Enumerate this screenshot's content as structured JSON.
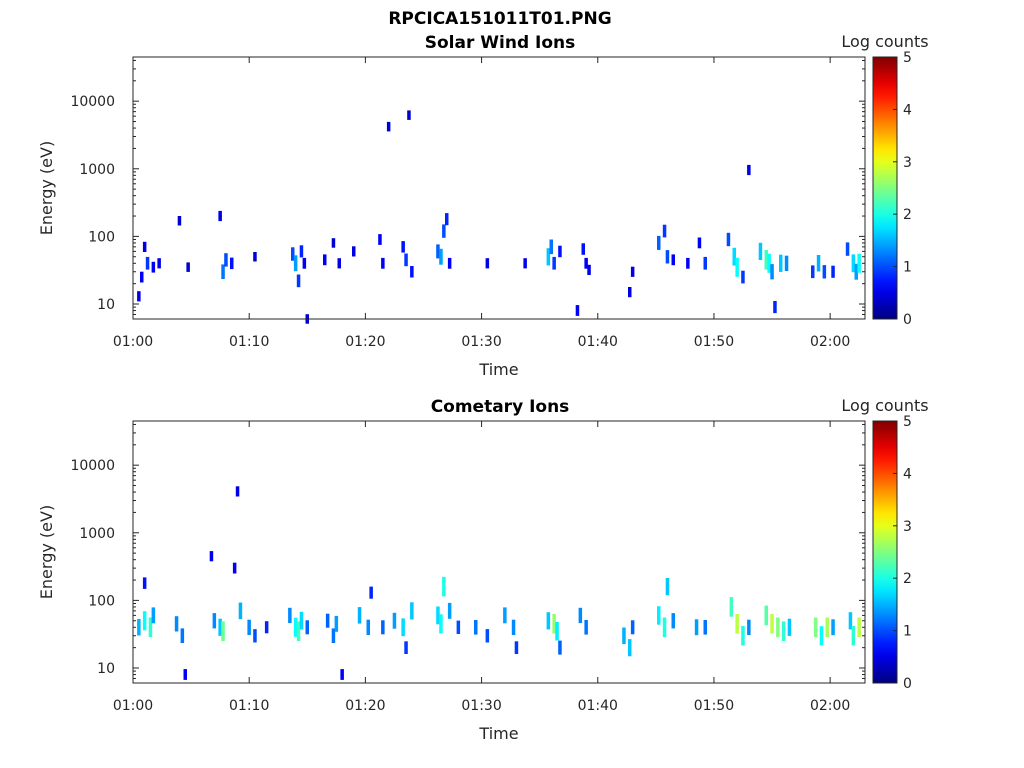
{
  "figure": {
    "title": "RPCICA151011T01.PNG"
  },
  "chart_data": [
    {
      "type": "heatmap",
      "title": "Solar Wind Ions",
      "xlabel": "Time",
      "ylabel": "Energy (eV)",
      "x_ticks": [
        "01:00",
        "01:10",
        "01:20",
        "01:30",
        "01:40",
        "01:50",
        "02:00"
      ],
      "y_ticks": [
        "10",
        "100",
        "1000",
        "10000"
      ],
      "y_scale": "log",
      "xlim": [
        "01:00",
        "02:03"
      ],
      "ylim": [
        6,
        45000
      ],
      "colorbar": {
        "label": "Log counts",
        "ticks": [
          "0",
          "1",
          "2",
          "3",
          "4",
          "5"
        ],
        "range": [
          0,
          5
        ],
        "colormap": "jet"
      },
      "cells": [
        [
          "01:00:30",
          13,
          0.5
        ],
        [
          "01:00:45",
          25,
          0.6
        ],
        [
          "01:01:00",
          70,
          0.5
        ],
        [
          "01:01:15",
          40,
          0.9
        ],
        [
          "01:01:45",
          35,
          0.6
        ],
        [
          "01:02:15",
          40,
          0.5
        ],
        [
          "01:04:00",
          170,
          0.4
        ],
        [
          "01:04:45",
          35,
          0.4
        ],
        [
          "01:07:30",
          200,
          0.5
        ],
        [
          "01:07:45",
          30,
          1.2
        ],
        [
          "01:08:00",
          45,
          1.0
        ],
        [
          "01:08:30",
          40,
          0.7
        ],
        [
          "01:10:30",
          50,
          0.4
        ],
        [
          "01:13:45",
          55,
          1.0
        ],
        [
          "01:14:00",
          40,
          1.4
        ],
        [
          "01:14:15",
          22,
          0.9
        ],
        [
          "01:14:30",
          60,
          0.8
        ],
        [
          "01:14:45",
          40,
          0.6
        ],
        [
          "01:15:00",
          6,
          0.4
        ],
        [
          "01:16:30",
          45,
          0.6
        ],
        [
          "01:17:15",
          80,
          0.4
        ],
        [
          "01:17:45",
          40,
          0.5
        ],
        [
          "01:19:00",
          60,
          0.5
        ],
        [
          "01:21:15",
          90,
          0.6
        ],
        [
          "01:21:30",
          40,
          0.6
        ],
        [
          "01:22:00",
          4200,
          0.4
        ],
        [
          "01:23:15",
          70,
          0.7
        ],
        [
          "01:23:30",
          45,
          0.9
        ],
        [
          "01:23:45",
          6200,
          0.4
        ],
        [
          "01:24:00",
          30,
          0.7
        ],
        [
          "01:26:15",
          60,
          1.1
        ],
        [
          "01:26:30",
          50,
          1.4
        ],
        [
          "01:26:45",
          120,
          1.0
        ],
        [
          "01:27:00",
          180,
          0.8
        ],
        [
          "01:27:15",
          40,
          0.6
        ],
        [
          "01:30:30",
          40,
          0.5
        ],
        [
          "01:33:45",
          40,
          0.5
        ],
        [
          "01:35:45",
          50,
          1.6
        ],
        [
          "01:36:00",
          70,
          1.2
        ],
        [
          "01:36:15",
          40,
          0.9
        ],
        [
          "01:36:45",
          60,
          0.7
        ],
        [
          "01:38:15",
          8,
          0.6
        ],
        [
          "01:38:45",
          65,
          0.7
        ],
        [
          "01:39:00",
          40,
          0.6
        ],
        [
          "01:39:15",
          32,
          0.5
        ],
        [
          "01:42:45",
          15,
          0.5
        ],
        [
          "01:43:00",
          30,
          0.5
        ],
        [
          "01:45:15",
          80,
          1.1
        ],
        [
          "01:45:45",
          120,
          0.9
        ],
        [
          "01:46:00",
          50,
          1.0
        ],
        [
          "01:46:30",
          45,
          0.6
        ],
        [
          "01:47:45",
          40,
          0.6
        ],
        [
          "01:48:45",
          80,
          0.6
        ],
        [
          "01:49:15",
          40,
          0.9
        ],
        [
          "01:51:15",
          90,
          1.0
        ],
        [
          "01:51:45",
          50,
          1.7
        ],
        [
          "01:52:00",
          35,
          1.9
        ],
        [
          "01:52:30",
          25,
          0.9
        ],
        [
          "01:53:00",
          960,
          0.5
        ],
        [
          "01:54:00",
          60,
          1.6
        ],
        [
          "01:54:30",
          45,
          2.2
        ],
        [
          "01:54:45",
          40,
          1.9
        ],
        [
          "01:55:00",
          30,
          1.3
        ],
        [
          "01:55:15",
          9,
          0.8
        ],
        [
          "01:55:45",
          40,
          1.6
        ],
        [
          "01:56:15",
          40,
          1.3
        ],
        [
          "01:58:30",
          30,
          0.9
        ],
        [
          "01:59:00",
          40,
          1.5
        ],
        [
          "01:59:30",
          30,
          1.0
        ],
        [
          "02:00:15",
          30,
          0.8
        ],
        [
          "02:01:30",
          65,
          1.0
        ],
        [
          "02:02:00",
          40,
          1.7
        ],
        [
          "02:02:15",
          30,
          1.4
        ],
        [
          "02:02:30",
          40,
          1.9
        ]
      ]
    },
    {
      "type": "heatmap",
      "title": "Cometary Ions",
      "xlabel": "Time",
      "ylabel": "Energy (eV)",
      "x_ticks": [
        "01:00",
        "01:10",
        "01:20",
        "01:30",
        "01:40",
        "01:50",
        "02:00"
      ],
      "y_ticks": [
        "10",
        "100",
        "1000",
        "10000"
      ],
      "y_scale": "log",
      "xlim": [
        "01:00",
        "02:03"
      ],
      "ylim": [
        6,
        45000
      ],
      "colorbar": {
        "label": "Log counts",
        "ticks": [
          "0",
          "1",
          "2",
          "3",
          "4",
          "5"
        ],
        "range": [
          0,
          5
        ],
        "colormap": "jet"
      },
      "cells": [
        [
          "01:00:30",
          40,
          1.5
        ],
        [
          "01:01:00",
          50,
          1.9
        ],
        [
          "01:01:30",
          40,
          2.1
        ],
        [
          "01:01:45",
          60,
          1.4
        ],
        [
          "01:01:00",
          180,
          0.7
        ],
        [
          "01:03:45",
          45,
          1.3
        ],
        [
          "01:04:15",
          30,
          1.2
        ],
        [
          "01:04:30",
          8,
          0.6
        ],
        [
          "01:06:45",
          450,
          0.5
        ],
        [
          "01:07:00",
          50,
          1.3
        ],
        [
          "01:07:30",
          40,
          1.6
        ],
        [
          "01:07:45",
          35,
          2.4
        ],
        [
          "01:08:45",
          300,
          0.6
        ],
        [
          "01:09:00",
          4100,
          0.5
        ],
        [
          "01:09:15",
          70,
          1.5
        ],
        [
          "01:10:00",
          40,
          1.3
        ],
        [
          "01:10:30",
          30,
          1.0
        ],
        [
          "01:11:30",
          40,
          0.8
        ],
        [
          "01:13:30",
          60,
          1.3
        ],
        [
          "01:14:00",
          40,
          1.9
        ],
        [
          "01:14:15",
          35,
          2.2
        ],
        [
          "01:14:30",
          50,
          1.7
        ],
        [
          "01:15:00",
          40,
          1.1
        ],
        [
          "01:16:45",
          50,
          1.1
        ],
        [
          "01:17:15",
          30,
          1.2
        ],
        [
          "01:17:30",
          45,
          1.4
        ],
        [
          "01:18:00",
          8,
          0.6
        ],
        [
          "01:19:30",
          60,
          1.5
        ],
        [
          "01:20:15",
          40,
          1.3
        ],
        [
          "01:20:30",
          130,
          0.8
        ],
        [
          "01:21:30",
          40,
          1.1
        ],
        [
          "01:22:30",
          50,
          1.4
        ],
        [
          "01:23:15",
          40,
          1.7
        ],
        [
          "01:23:30",
          20,
          0.9
        ],
        [
          "01:24:00",
          70,
          1.6
        ],
        [
          "01:26:15",
          60,
          1.7
        ],
        [
          "01:26:30",
          45,
          1.9
        ],
        [
          "01:26:45",
          160,
          2.0
        ],
        [
          "01:27:15",
          70,
          1.4
        ],
        [
          "01:28:00",
          40,
          1.0
        ],
        [
          "01:29:30",
          40,
          1.2
        ],
        [
          "01:30:30",
          30,
          1.0
        ],
        [
          "01:32:00",
          60,
          1.4
        ],
        [
          "01:32:45",
          40,
          1.3
        ],
        [
          "01:33:00",
          20,
          0.9
        ],
        [
          "01:35:45",
          50,
          1.6
        ],
        [
          "01:36:15",
          45,
          2.6
        ],
        [
          "01:36:30",
          35,
          1.8
        ],
        [
          "01:36:45",
          20,
          1.1
        ],
        [
          "01:38:30",
          60,
          1.3
        ],
        [
          "01:39:00",
          40,
          1.2
        ],
        [
          "01:42:15",
          30,
          1.5
        ],
        [
          "01:42:45",
          20,
          1.6
        ],
        [
          "01:43:00",
          40,
          1.1
        ],
        [
          "01:45:15",
          60,
          1.8
        ],
        [
          "01:45:45",
          40,
          2.0
        ],
        [
          "01:46:00",
          160,
          1.6
        ],
        [
          "01:46:30",
          50,
          1.3
        ],
        [
          "01:48:30",
          40,
          1.4
        ],
        [
          "01:49:15",
          40,
          1.2
        ],
        [
          "01:51:30",
          80,
          2.2
        ],
        [
          "01:52:00",
          45,
          2.8
        ],
        [
          "01:52:30",
          30,
          2.0
        ],
        [
          "01:53:00",
          40,
          1.3
        ],
        [
          "01:54:30",
          60,
          2.3
        ],
        [
          "01:55:00",
          45,
          2.8
        ],
        [
          "01:55:30",
          40,
          2.5
        ],
        [
          "01:56:00",
          35,
          2.1
        ],
        [
          "01:56:30",
          40,
          1.6
        ],
        [
          "01:58:45",
          40,
          2.5
        ],
        [
          "01:59:15",
          30,
          1.9
        ],
        [
          "01:59:45",
          40,
          2.7
        ],
        [
          "02:00:15",
          40,
          1.4
        ],
        [
          "02:01:45",
          50,
          1.6
        ],
        [
          "02:02:00",
          30,
          2.1
        ],
        [
          "02:02:30",
          40,
          2.8
        ]
      ]
    }
  ]
}
